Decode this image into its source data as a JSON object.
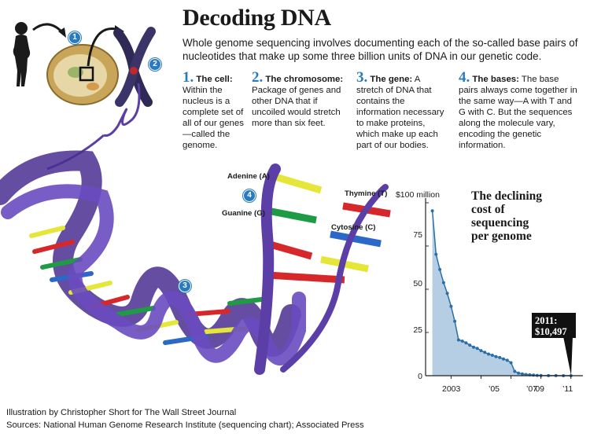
{
  "title": "Decoding DNA",
  "intro": "Whole genome sequencing involves documenting each of the so-called base pairs of nucleotides that make up some three billion units of DNA in our genetic code.",
  "steps": [
    {
      "num": "1.",
      "head": "The cell:",
      "text": "Within the nucleus is a complete set of all of our genes—called the genome."
    },
    {
      "num": "2.",
      "head": "The chromosome:",
      "text": "Package of genes and other DNA that if uncoiled would stretch more than six feet."
    },
    {
      "num": "3.",
      "head": "The gene:",
      "text": "A stretch of DNA that contains the information necessary to make proteins, which make up each part of our bodies."
    },
    {
      "num": "4.",
      "head": "The bases:",
      "text": "The base pairs always come together in the same way—A with T and G with C. But the sequences along the molecule vary, encoding the genetic information."
    }
  ],
  "badges": [
    "1",
    "2",
    "3",
    "4"
  ],
  "bases": {
    "adenine": "Adenine (A)",
    "thymine": "Thymine (T)",
    "guanine": "Guanine (G)",
    "cytosine": "Cytosine (C)"
  },
  "colors": {
    "accent": "#2a7bbd",
    "helix": "#5b3fa6",
    "adenine": "#e6e63a",
    "thymine": "#d6282b",
    "guanine": "#1f9a45",
    "cytosine": "#2b68c7",
    "area": "#a9c6de",
    "line": "#2c6ea7"
  },
  "credits": {
    "illustration": "Illustration by Christopher Short for The Wall Street Journal",
    "sources": "Sources: National Human Genome Research Institute (sequencing chart); Associated Press"
  },
  "chart_data": {
    "type": "area",
    "title": "The declining cost of sequencing per genome",
    "title_lines": [
      "The declining",
      "cost of",
      "sequencing",
      "per genome"
    ],
    "ylabel": "",
    "xlabel": "",
    "y_ticks": [
      "$100 million",
      "75",
      "50",
      "25",
      "0"
    ],
    "y_tick_values": [
      100,
      75,
      50,
      25,
      0
    ],
    "x_ticks": [
      "2003",
      "’05",
      "’07",
      "’09",
      "’11"
    ],
    "x_tick_values": [
      2003,
      2005,
      2007,
      2009,
      2011
    ],
    "ylim": [
      0,
      100
    ],
    "xlim": [
      2001.3,
      2011.8
    ],
    "annotation": {
      "label": "2011: $10,497"
    },
    "series": [
      {
        "values": [
          {
            "x": 2001.75,
            "y": 95.3
          },
          {
            "x": 2002.0,
            "y": 70.2
          },
          {
            "x": 2002.25,
            "y": 61.4
          },
          {
            "x": 2002.5,
            "y": 53.8
          },
          {
            "x": 2002.75,
            "y": 47.6
          },
          {
            "x": 2003.0,
            "y": 40.1
          },
          {
            "x": 2003.25,
            "y": 31.5
          },
          {
            "x": 2003.5,
            "y": 20.7
          },
          {
            "x": 2003.75,
            "y": 20.0
          },
          {
            "x": 2004.0,
            "y": 19.0
          },
          {
            "x": 2004.25,
            "y": 17.7
          },
          {
            "x": 2004.5,
            "y": 16.5
          },
          {
            "x": 2004.75,
            "y": 15.8
          },
          {
            "x": 2005.0,
            "y": 14.5
          },
          {
            "x": 2005.25,
            "y": 13.5
          },
          {
            "x": 2005.5,
            "y": 12.5
          },
          {
            "x": 2005.75,
            "y": 11.8
          },
          {
            "x": 2006.0,
            "y": 11.0
          },
          {
            "x": 2006.25,
            "y": 10.5
          },
          {
            "x": 2006.5,
            "y": 9.7
          },
          {
            "x": 2006.75,
            "y": 8.9
          },
          {
            "x": 2007.0,
            "y": 7.5
          },
          {
            "x": 2007.25,
            "y": 2.5
          },
          {
            "x": 2007.5,
            "y": 1.5
          },
          {
            "x": 2007.75,
            "y": 1.0
          },
          {
            "x": 2008.0,
            "y": 0.7
          },
          {
            "x": 2008.25,
            "y": 0.5
          },
          {
            "x": 2008.5,
            "y": 0.3
          },
          {
            "x": 2008.75,
            "y": 0.2
          },
          {
            "x": 2009.0,
            "y": 0.1
          },
          {
            "x": 2009.5,
            "y": 0.05
          },
          {
            "x": 2010.0,
            "y": 0.03
          },
          {
            "x": 2010.5,
            "y": 0.02
          },
          {
            "x": 2011.0,
            "y": 0.0105
          }
        ]
      }
    ]
  }
}
